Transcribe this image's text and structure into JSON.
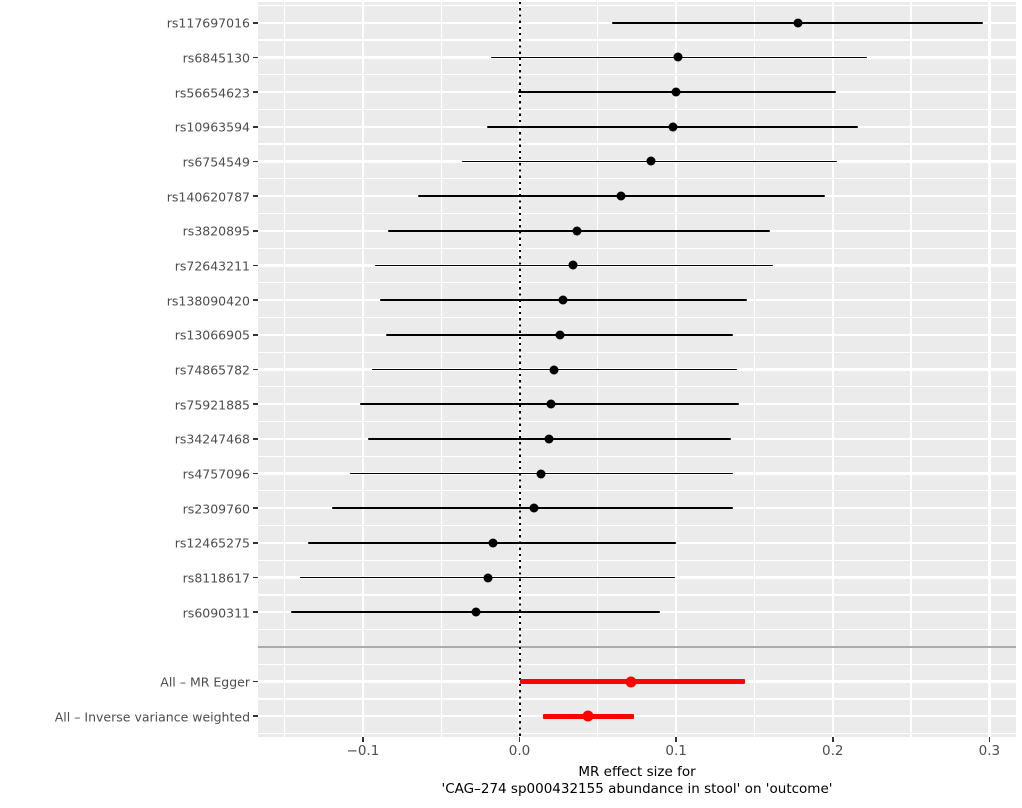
{
  "chart_data": {
    "type": "forest",
    "title": "",
    "xlabel_lines": [
      "MR effect size for",
      "'CAG–274 sp000432155 abundance in stool' on 'outcome'"
    ],
    "x_tick_values": [
      -0.1,
      0.0,
      0.1,
      0.2,
      0.3
    ],
    "x_tick_labels": [
      "−0.1",
      "0.0",
      "0.1",
      "0.2",
      "0.3"
    ],
    "x_minor_gridlines": [
      -0.15,
      -0.05,
      0.05,
      0.15,
      0.25
    ],
    "xlim": [
      -0.167,
      0.317
    ],
    "grid": true,
    "legend": "none",
    "zero_reference_line": 0.0,
    "colors": {
      "snp_point": "#000000",
      "summary_point": "#FF0000",
      "panel_background": "#EBEBEB",
      "gridline": "#FFFFFF",
      "axis_text": "#4D4D4D",
      "axis_title": "#000000",
      "separator": "#ABABAB",
      "zero_line": "#000000"
    },
    "rows": [
      {
        "label": "rs117697016",
        "estimate": 0.178,
        "ci_low": 0.059,
        "ci_high": 0.296,
        "group": "snp"
      },
      {
        "label": "rs6845130",
        "estimate": 0.101,
        "ci_low": -0.018,
        "ci_high": 0.222,
        "group": "snp"
      },
      {
        "label": "rs56654623",
        "estimate": 0.1,
        "ci_low": -0.001,
        "ci_high": 0.202,
        "group": "snp"
      },
      {
        "label": "rs10963594",
        "estimate": 0.098,
        "ci_low": -0.021,
        "ci_high": 0.216,
        "group": "snp"
      },
      {
        "label": "rs6754549",
        "estimate": 0.084,
        "ci_low": -0.037,
        "ci_high": 0.203,
        "group": "snp"
      },
      {
        "label": "rs140620787",
        "estimate": 0.065,
        "ci_low": -0.065,
        "ci_high": 0.195,
        "group": "snp"
      },
      {
        "label": "rs3820895",
        "estimate": 0.037,
        "ci_low": -0.084,
        "ci_high": 0.16,
        "group": "snp"
      },
      {
        "label": "rs72643211",
        "estimate": 0.034,
        "ci_low": -0.092,
        "ci_high": 0.162,
        "group": "snp"
      },
      {
        "label": "rs138090420",
        "estimate": 0.028,
        "ci_low": -0.089,
        "ci_high": 0.145,
        "group": "snp"
      },
      {
        "label": "rs13066905",
        "estimate": 0.026,
        "ci_low": -0.085,
        "ci_high": 0.136,
        "group": "snp"
      },
      {
        "label": "rs74865782",
        "estimate": 0.022,
        "ci_low": -0.094,
        "ci_high": 0.139,
        "group": "snp"
      },
      {
        "label": "rs75921885",
        "estimate": 0.02,
        "ci_low": -0.102,
        "ci_high": 0.14,
        "group": "snp"
      },
      {
        "label": "rs34247468",
        "estimate": 0.019,
        "ci_low": -0.097,
        "ci_high": 0.135,
        "group": "snp"
      },
      {
        "label": "rs4757096",
        "estimate": 0.014,
        "ci_low": -0.108,
        "ci_high": 0.136,
        "group": "snp"
      },
      {
        "label": "rs2309760",
        "estimate": 0.009,
        "ci_low": -0.12,
        "ci_high": 0.136,
        "group": "snp"
      },
      {
        "label": "rs12465275",
        "estimate": -0.017,
        "ci_low": -0.135,
        "ci_high": 0.1,
        "group": "snp"
      },
      {
        "label": "rs8118617",
        "estimate": -0.02,
        "ci_low": -0.14,
        "ci_high": 0.099,
        "group": "snp"
      },
      {
        "label": "rs6090311",
        "estimate": -0.028,
        "ci_low": -0.146,
        "ci_high": 0.09,
        "group": "snp"
      },
      {
        "label": "All – MR Egger",
        "estimate": 0.071,
        "ci_low": 0.0,
        "ci_high": 0.144,
        "group": "summary"
      },
      {
        "label": "All – Inverse variance weighted",
        "estimate": 0.044,
        "ci_low": 0.015,
        "ci_high": 0.073,
        "group": "summary"
      }
    ]
  }
}
